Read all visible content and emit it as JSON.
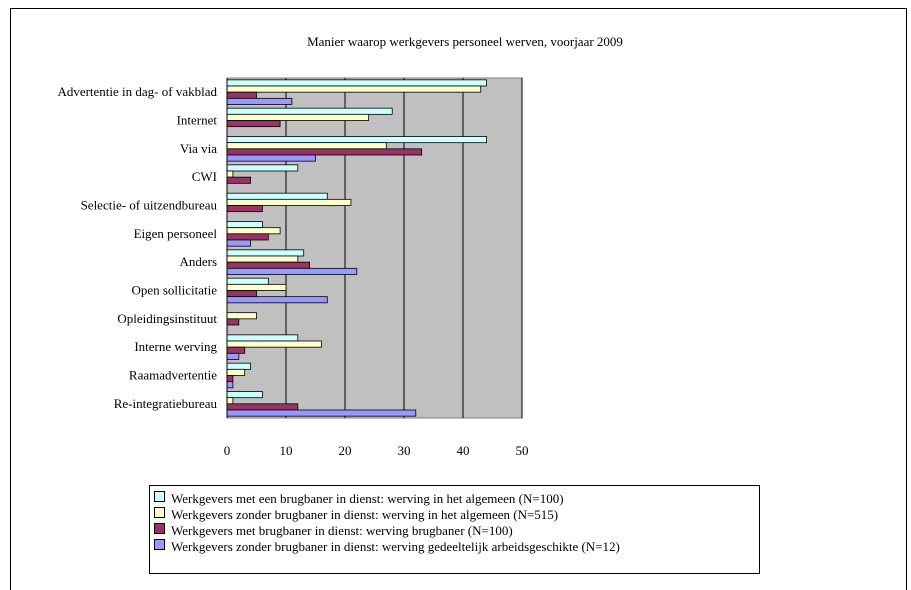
{
  "chart_data": {
    "type": "bar",
    "orientation": "horizontal",
    "title": "Manier waarop werkgevers personeel werven, voorjaar 2009",
    "categories": [
      "Advertentie in dag- of vakblad",
      "Internet",
      "Via via",
      "CWI",
      "Selectie- of uitzendbureau",
      "Eigen personeel",
      "Anders",
      "Open sollicitatie",
      "Opleidingsinstituut",
      "Interne werving",
      "Raamadvertentie",
      "Re-integratiebureau"
    ],
    "series": [
      {
        "name": "Werkgevers met een brugbaner in dienst: werving in het algemeen (N=100)",
        "color": "#ccffff",
        "values": [
          44,
          28,
          44,
          12,
          17,
          6,
          13,
          7,
          0,
          12,
          4,
          6
        ]
      },
      {
        "name": "Werkgevers zonder brugbaner in dienst: werving in het algemeen (N=515)",
        "color": "#ffffcc",
        "values": [
          43,
          24,
          27,
          1,
          21,
          9,
          12,
          10,
          5,
          16,
          3,
          1
        ]
      },
      {
        "name": "Werkgevers met brugbaner in dienst: werving brugbaner (N=100)",
        "color": "#993366",
        "values": [
          5,
          9,
          33,
          4,
          6,
          7,
          14,
          5,
          2,
          3,
          1,
          12
        ]
      },
      {
        "name": "Werkgevers zonder brugbaner in dienst: werving gedeeltelijk arbeidsgeschikte (N=12)",
        "color": "#9999ff",
        "values": [
          11,
          0,
          15,
          0,
          0,
          4,
          22,
          17,
          0,
          2,
          1,
          32
        ]
      }
    ],
    "xlim": [
      0,
      50
    ],
    "xticks": [
      "0",
      "10",
      "20",
      "30",
      "40",
      "50"
    ],
    "grid": true,
    "plot_background": "#c0c0c0",
    "legend_position": "bottom"
  }
}
